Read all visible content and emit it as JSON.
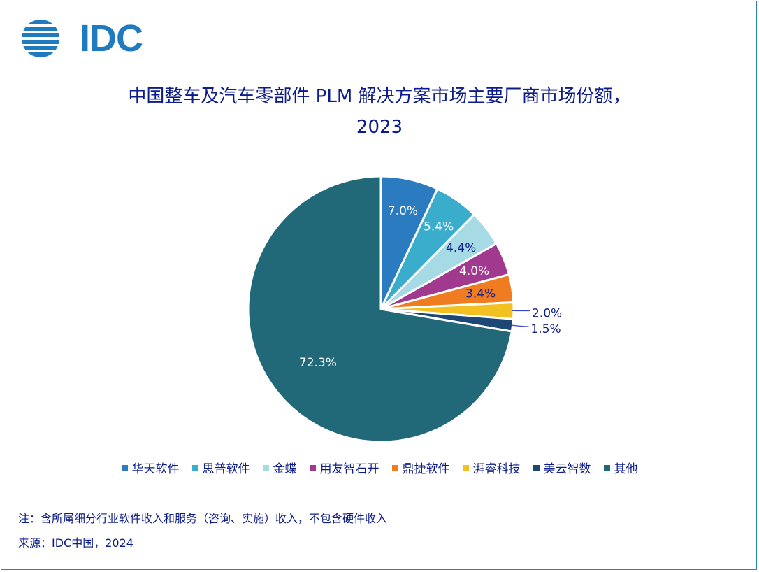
{
  "logo": {
    "text": "IDC"
  },
  "title": {
    "line1": "中国整车及汽车零部件 PLM 解决方案市场主要厂商市场份额，",
    "line2": "2023"
  },
  "chart_data": {
    "type": "pie",
    "title": "中国整车及汽车零部件 PLM 解决方案市场主要厂商市场份额，2023",
    "legend_position": "bottom",
    "categories": [
      "华天软件",
      "思普软件",
      "金蝶",
      "用友智石开",
      "鼎捷软件",
      "湃睿科技",
      "美云智数",
      "其他"
    ],
    "values": [
      7.0,
      5.4,
      4.4,
      4.0,
      3.4,
      2.0,
      1.5,
      72.3
    ],
    "labels": [
      "7.0%",
      "5.4%",
      "4.4%",
      "4.0%",
      "3.4%",
      "2.0%",
      "1.5%",
      "72.3%"
    ],
    "colors": [
      "#2a7bc0",
      "#3aaccc",
      "#a6dbe6",
      "#a13a8f",
      "#f07c22",
      "#f2c021",
      "#1d4876",
      "#216878"
    ]
  },
  "notes": {
    "note": "注：含所属细分行业软件收入和服务（咨询、实施）收入，不包含硬件收入",
    "source": "来源：IDC中国，2024"
  }
}
